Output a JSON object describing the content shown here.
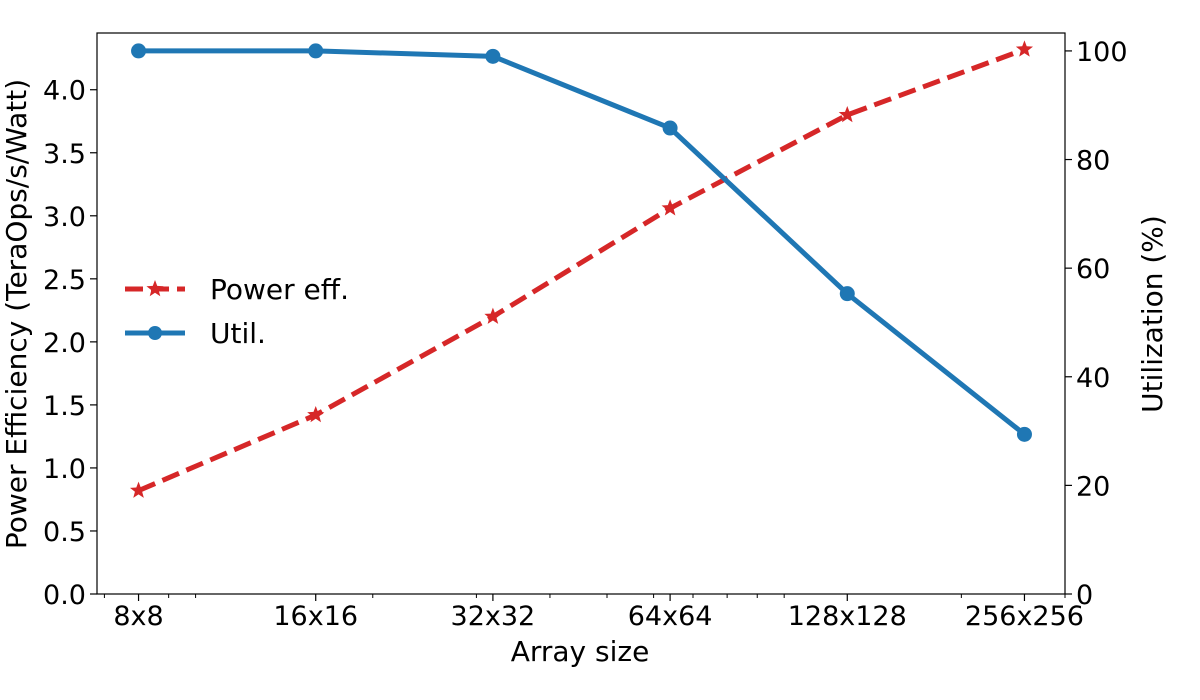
{
  "chart_data": {
    "type": "line",
    "xlabel": "Array size",
    "ylabel_left": "Power Efficiency (TeraOps/s/Watt)",
    "ylabel_right": "Utilization (%)",
    "x_scale": "log2",
    "categories": [
      "8x8",
      "16x16",
      "32x32",
      "64x64",
      "128x128",
      "256x256"
    ],
    "x": [
      8,
      16,
      32,
      64,
      128,
      256
    ],
    "ylim_left": [
      0,
      4.45
    ],
    "ylim_right": [
      0,
      103.3
    ],
    "yticks_left": [
      "0.0",
      "0.5",
      "1.0",
      "1.5",
      "2.0",
      "2.5",
      "3.0",
      "3.5",
      "4.0"
    ],
    "yticks_right": [
      "0",
      "20",
      "40",
      "60",
      "80",
      "100"
    ],
    "grid": false,
    "legend_position": "center-left",
    "series": [
      {
        "name": "Power eff.",
        "axis": "left",
        "color": "#d62728",
        "style": "dashed",
        "marker": "star",
        "values": [
          0.82,
          1.42,
          2.2,
          3.06,
          3.8,
          4.32
        ]
      },
      {
        "name": "Util.",
        "axis": "right",
        "color": "#1f77b4",
        "style": "solid",
        "marker": "circle",
        "values": [
          100,
          100,
          99,
          85.8,
          55.3,
          29.4
        ]
      }
    ]
  }
}
